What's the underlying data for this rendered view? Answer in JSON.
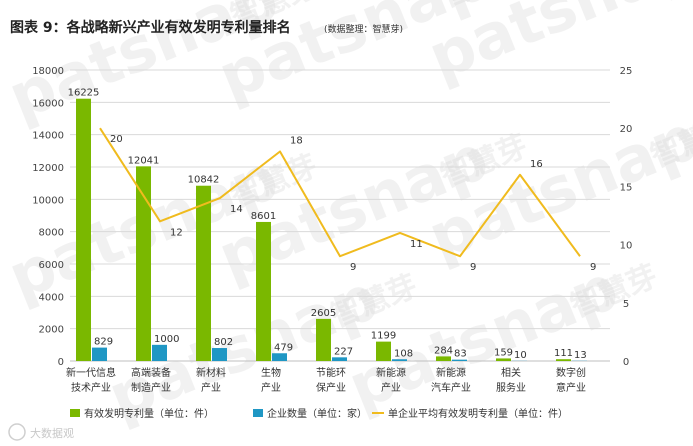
{
  "header": {
    "title": "图表 9：各战略新兴产业有效发明专利量排名",
    "source": "(数据整理：智慧芽)"
  },
  "watermark": {
    "brand": "patsnap",
    "brand_cn": "智慧芽",
    "corner": "大数据观"
  },
  "colors": {
    "patents": "#7ab800",
    "companies": "#1f97c4",
    "average": "#f0bb1e",
    "grid": "#d9d9d9"
  },
  "chart_data": {
    "type": "bar",
    "categories": [
      [
        "新一代信息",
        "技术产业"
      ],
      [
        "高端装备",
        "制造产业"
      ],
      [
        "新材料",
        "产业"
      ],
      [
        "生物",
        "产业"
      ],
      [
        "节能环",
        "保产业"
      ],
      [
        "新能源",
        "产业"
      ],
      [
        "新能源",
        "汽车产业"
      ],
      [
        "相关",
        "服务业"
      ],
      [
        "数字创",
        "意产业"
      ]
    ],
    "series": [
      {
        "name": "有效发明专利量（单位：件）",
        "type": "bar",
        "axis": "left",
        "values": [
          16225,
          12041,
          10842,
          8601,
          2605,
          1199,
          284,
          159,
          111
        ]
      },
      {
        "name": "企业数量（单位：家）",
        "type": "bar",
        "axis": "left",
        "values": [
          829,
          1000,
          802,
          479,
          227,
          108,
          83,
          10,
          13
        ]
      },
      {
        "name": "单企业平均有效发明专利量（单位：件）",
        "type": "line",
        "axis": "right",
        "values": [
          20,
          12,
          14,
          18,
          9,
          11,
          9,
          16,
          9
        ]
      }
    ],
    "y_left": {
      "min": 0,
      "max": 18000,
      "step": 2000,
      "ticks": [
        "0",
        "2000",
        "4000",
        "6000",
        "8000",
        "10000",
        "12000",
        "14000",
        "16000",
        "18000"
      ]
    },
    "y_right": {
      "min": 0,
      "max": 25,
      "step": 5,
      "ticks": [
        "0",
        "5",
        "10",
        "15",
        "20",
        "25"
      ]
    },
    "grid": true,
    "legend_position": "bottom"
  }
}
